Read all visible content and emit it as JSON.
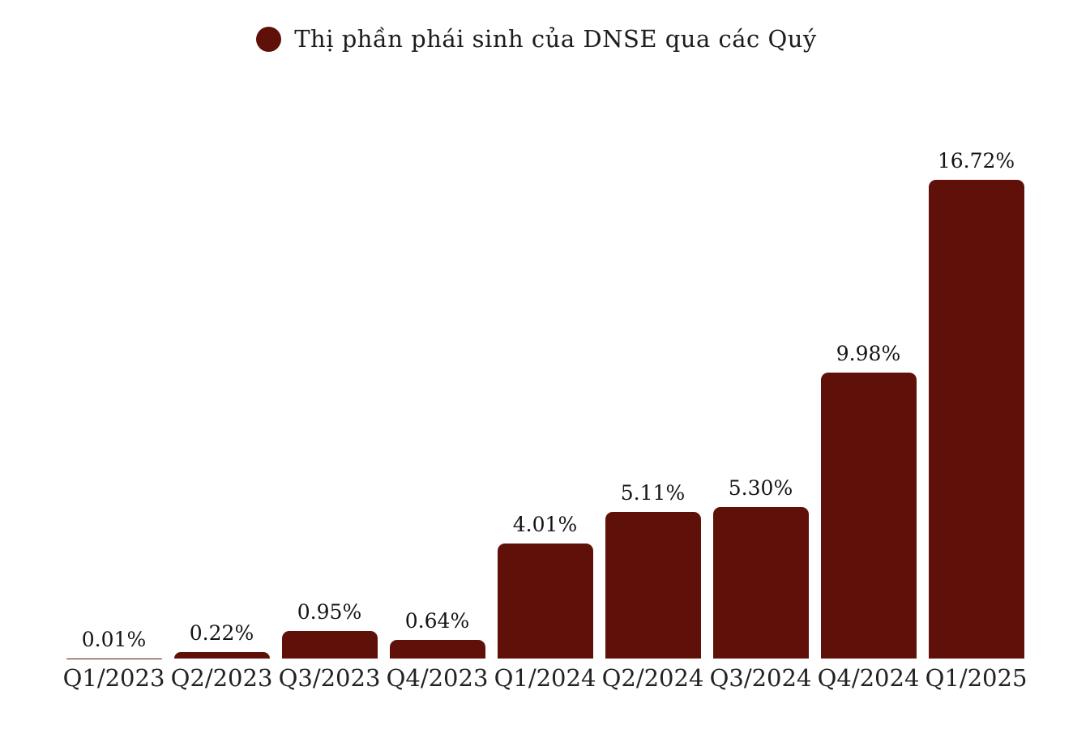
{
  "legend": {
    "title": "Thị phần phái sinh của DNSE qua các Quý"
  },
  "colors": {
    "bar": "#5F1109",
    "legend_dot": "#5F1109",
    "value_label_text": "#141414",
    "axis_label_text": "#222222",
    "background": "#ffffff"
  },
  "chart_data": {
    "type": "bar",
    "title": "Thị phần phái sinh của DNSE qua các Quý",
    "categories": [
      "Q1/2023",
      "Q2/2023",
      "Q3/2023",
      "Q4/2023",
      "Q1/2024",
      "Q2/2024",
      "Q3/2024",
      "Q4/2024",
      "Q1/2025"
    ],
    "values": [
      0.01,
      0.22,
      0.95,
      0.64,
      4.01,
      5.11,
      5.3,
      9.98,
      16.72
    ],
    "value_labels": [
      "0.01%",
      "0.22%",
      "0.95%",
      "0.64%",
      "4.01%",
      "5.11%",
      "5.30%",
      "9.98%",
      "16.72%"
    ],
    "xlabel": "",
    "ylabel": "",
    "ylim": [
      0,
      17.5
    ],
    "grid": false,
    "legend_position": "top-center",
    "bar_color": "#5F1109"
  }
}
